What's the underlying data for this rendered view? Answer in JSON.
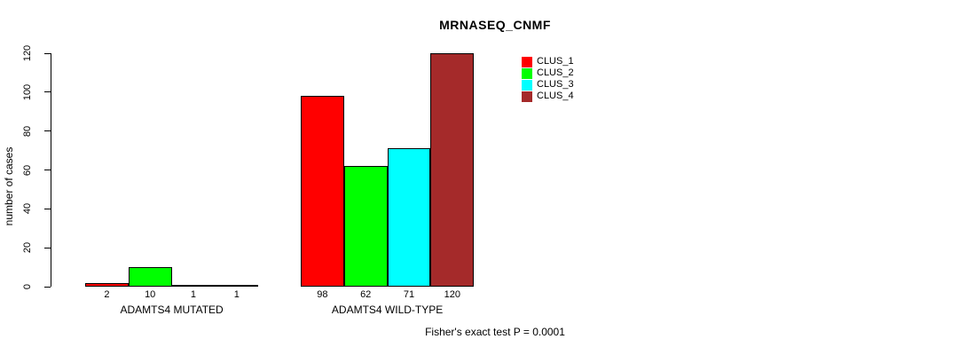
{
  "chart_data": {
    "type": "bar",
    "title": "MRNASEQ_CNMF",
    "ylabel": "number of cases",
    "xlabel": "",
    "annotation": "Fisher's exact test P = 0.0001",
    "categories": [
      "ADAMTS4 MUTATED",
      "ADAMTS4 WILD-TYPE"
    ],
    "series": [
      {
        "name": "CLUS_1",
        "color": "#FF0000",
        "values": [
          2,
          98
        ]
      },
      {
        "name": "CLUS_2",
        "color": "#00FF00",
        "values": [
          10,
          62
        ]
      },
      {
        "name": "CLUS_3",
        "color": "#00FFFF",
        "values": [
          1,
          71
        ]
      },
      {
        "name": "CLUS_4",
        "color": "#A52A2A",
        "values": [
          1,
          120
        ]
      }
    ],
    "bar_border_color": "#000000",
    "bar_value_labels_shown": true,
    "yticks": [
      0,
      20,
      40,
      60,
      80,
      100,
      120
    ],
    "ylim": [
      0,
      120
    ],
    "grid": false,
    "legend_position": "top-right",
    "background_color": "#FFFFFF"
  }
}
